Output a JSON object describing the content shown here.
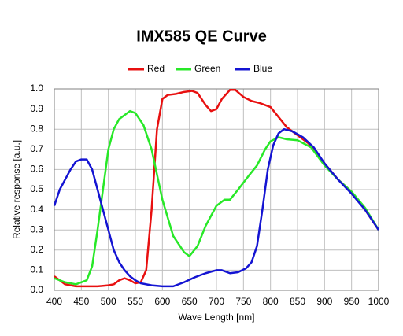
{
  "chart_data": {
    "type": "line",
    "title": "IMX585 QE Curve",
    "x_label": "Wave Length [nm]",
    "y_label": "Relative response [a.u.]",
    "xlim": [
      400,
      1000
    ],
    "xticks": [
      400,
      450,
      500,
      550,
      600,
      650,
      700,
      750,
      800,
      850,
      900,
      950,
      1000
    ],
    "ylim": [
      0,
      1
    ],
    "yticks": [
      {
        "value": 0,
        "label": "0.0"
      },
      0.1,
      0.2,
      0.3,
      0.4,
      0.5,
      0.6,
      0.7,
      0.8,
      0.9,
      {
        "value": 1,
        "label": "1.0"
      }
    ],
    "grid": true,
    "legend": "top",
    "series": [
      {
        "name": "Red",
        "color": "#e81010",
        "x": [
          400,
          410,
          420,
          440,
          460,
          480,
          500,
          510,
          520,
          530,
          540,
          550,
          560,
          570,
          580,
          590,
          600,
          610,
          625,
          640,
          655,
          665,
          680,
          690,
          700,
          710,
          725,
          735,
          750,
          765,
          780,
          800,
          815,
          830,
          850,
          870,
          900,
          925,
          950,
          975,
          1000
        ],
        "values": [
          0.07,
          0.05,
          0.03,
          0.02,
          0.02,
          0.02,
          0.025,
          0.03,
          0.05,
          0.06,
          0.05,
          0.035,
          0.04,
          0.1,
          0.4,
          0.8,
          0.95,
          0.97,
          0.975,
          0.985,
          0.99,
          0.98,
          0.92,
          0.89,
          0.9,
          0.95,
          0.995,
          0.995,
          0.96,
          0.94,
          0.93,
          0.91,
          0.86,
          0.81,
          0.77,
          0.73,
          0.63,
          0.55,
          0.49,
          0.4,
          0.3
        ]
      },
      {
        "name": "Green",
        "color": "#28e828",
        "x": [
          400,
          420,
          440,
          460,
          470,
          480,
          490,
          500,
          510,
          520,
          540,
          550,
          565,
          580,
          600,
          620,
          640,
          650,
          665,
          680,
          700,
          715,
          725,
          740,
          760,
          775,
          790,
          800,
          815,
          830,
          850,
          875,
          900,
          925,
          950,
          975,
          1000
        ],
        "values": [
          0.06,
          0.04,
          0.03,
          0.05,
          0.12,
          0.3,
          0.5,
          0.7,
          0.8,
          0.85,
          0.89,
          0.88,
          0.82,
          0.7,
          0.45,
          0.27,
          0.19,
          0.17,
          0.22,
          0.32,
          0.42,
          0.45,
          0.45,
          0.5,
          0.57,
          0.62,
          0.7,
          0.74,
          0.76,
          0.75,
          0.745,
          0.71,
          0.62,
          0.55,
          0.49,
          0.41,
          0.3
        ]
      },
      {
        "name": "Blue",
        "color": "#1414d2",
        "x": [
          400,
          410,
          420,
          430,
          440,
          450,
          460,
          470,
          480,
          490,
          500,
          510,
          520,
          530,
          540,
          550,
          560,
          580,
          600,
          620,
          640,
          660,
          680,
          700,
          710,
          725,
          740,
          755,
          765,
          775,
          785,
          795,
          805,
          815,
          825,
          840,
          860,
          880,
          900,
          925,
          950,
          975,
          1000
        ],
        "values": [
          0.42,
          0.5,
          0.55,
          0.6,
          0.64,
          0.65,
          0.65,
          0.6,
          0.5,
          0.4,
          0.3,
          0.2,
          0.14,
          0.1,
          0.07,
          0.05,
          0.035,
          0.025,
          0.02,
          0.02,
          0.04,
          0.065,
          0.085,
          0.1,
          0.1,
          0.085,
          0.09,
          0.11,
          0.14,
          0.22,
          0.4,
          0.6,
          0.72,
          0.78,
          0.8,
          0.79,
          0.76,
          0.71,
          0.63,
          0.55,
          0.48,
          0.4,
          0.3
        ]
      }
    ]
  }
}
